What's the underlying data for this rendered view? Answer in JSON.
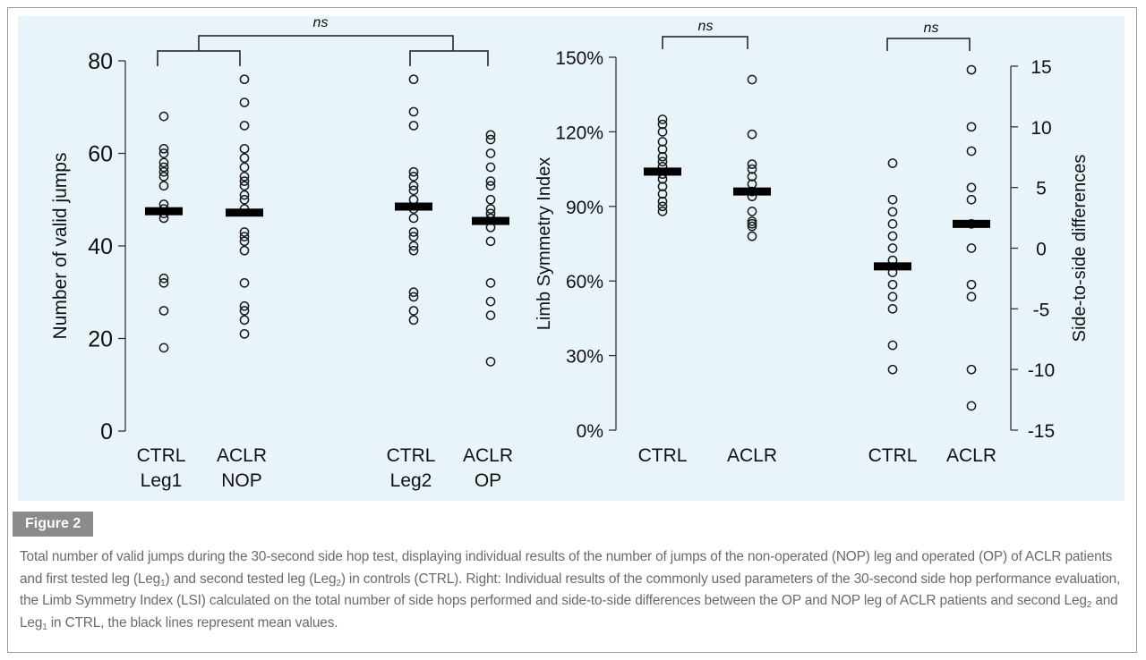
{
  "figure": {
    "label": "Figure 2",
    "caption": {
      "part1": "Total number of valid jumps during the 30-second side hop test, displaying individual results of the number of jumps of the non-operated (NOP) leg and operated (OP) of ACLR patients and first tested leg (Leg",
      "sub1": "1",
      "part2": ") and second tested leg (Leg",
      "sub2": "2",
      "part3": ") in controls (CTRL). Right: Individual results of the commonly used parameters of the 30-second side hop performance evaluation, the Limb Symmetry Index (LSI) calculated on the total number of side hops performed and side-to-side differences between the OP and NOP leg of ACLR patients and second Leg",
      "sub3": "2",
      "part4": " and Leg",
      "sub4": "1",
      "part5": " in CTRL, the black lines represent mean values."
    }
  },
  "chart_data": [
    {
      "type": "scatter",
      "ylabel": "Number of valid jumps",
      "ylim": [
        0,
        80
      ],
      "yticks": [
        0,
        20,
        40,
        60,
        80
      ],
      "categories": [
        [
          "CTRL",
          "Leg1"
        ],
        [
          "ACLR",
          "NOP"
        ],
        [
          "CTRL",
          "Leg2"
        ],
        [
          "ACLR",
          "OP"
        ]
      ],
      "groups": [
        {
          "values": [
            68,
            61,
            60,
            58,
            57,
            56,
            55,
            53,
            49,
            48,
            47,
            46,
            33,
            32,
            26,
            18
          ],
          "mean": 47.5
        },
        {
          "values": [
            76,
            71,
            66,
            61,
            59,
            57,
            55,
            54,
            53,
            51,
            50,
            48,
            43,
            42,
            41,
            39,
            32,
            27,
            26,
            24,
            21
          ],
          "mean": 47.2
        },
        {
          "values": [
            76,
            69,
            66,
            56,
            55,
            53,
            52,
            50,
            48,
            46,
            43,
            42,
            40,
            39,
            30,
            29,
            26,
            24
          ],
          "mean": 48.5
        },
        {
          "values": [
            64,
            63,
            60,
            57,
            54,
            53,
            50,
            48,
            47,
            46,
            44,
            41,
            32,
            28,
            25,
            15
          ],
          "mean": 45.4
        }
      ],
      "annotations": [
        {
          "text": "ns",
          "between": [
            [
              0,
              1
            ],
            [
              2,
              3
            ]
          ]
        }
      ]
    },
    {
      "type": "scatter",
      "ylabel": "Limb Symmetry Index",
      "ylim": [
        0,
        150
      ],
      "yticks": [
        "0%",
        "30%",
        "60%",
        "90%",
        "120%",
        "150%"
      ],
      "categories": [
        "CTRL",
        "ACLR"
      ],
      "groups": [
        {
          "values": [
            125,
            123,
            120,
            116,
            113,
            110,
            108,
            106,
            103,
            101,
            98,
            95,
            92,
            90,
            88
          ],
          "mean": 104
        },
        {
          "values": [
            141,
            119,
            107,
            105,
            102,
            99,
            96,
            94,
            88,
            84,
            83,
            82,
            78
          ],
          "mean": 96
        }
      ],
      "annotations": [
        {
          "text": "ns",
          "between": [
            0,
            1
          ]
        }
      ]
    },
    {
      "type": "scatter",
      "ylabel": "Side-to-side differences",
      "ylim": [
        -15,
        15
      ],
      "yticks": [
        -15,
        -10,
        -5,
        0,
        5,
        10,
        15
      ],
      "categories": [
        "CTRL",
        "ACLR"
      ],
      "groups": [
        {
          "values": [
            7,
            4,
            3,
            2,
            1,
            0,
            -1,
            -2,
            -3,
            -4,
            -5,
            -8,
            -10
          ],
          "mean": -1.5
        },
        {
          "values": [
            14.7,
            10,
            8,
            5,
            4,
            2,
            0,
            -3,
            -4,
            -10,
            -13
          ],
          "mean": 2
        }
      ],
      "annotations": [
        {
          "text": "ns",
          "between": [
            0,
            1
          ]
        }
      ]
    }
  ]
}
